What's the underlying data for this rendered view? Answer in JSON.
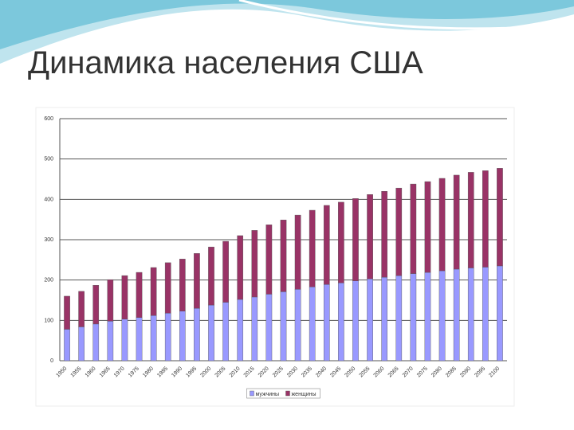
{
  "slide_title": "Динамика населения США",
  "chart_data": {
    "type": "stacked_bar",
    "categories": [
      "1950",
      "1955",
      "1960",
      "1965",
      "1970",
      "1975",
      "1980",
      "1985",
      "1990",
      "1995",
      "2000",
      "2005",
      "2010",
      "2015",
      "2020",
      "2025",
      "2030",
      "2035",
      "2040",
      "2045",
      "2050",
      "2055",
      "2060",
      "2065",
      "2070",
      "2075",
      "2080",
      "2085",
      "2090",
      "2095",
      "2100"
    ],
    "series": [
      {
        "name": "мужчины",
        "color": "#9999ff",
        "values": [
          78,
          84,
          91,
          98,
          103,
          107,
          112,
          118,
          123,
          130,
          138,
          145,
          152,
          158,
          165,
          171,
          177,
          183,
          189,
          193,
          198,
          203,
          207,
          211,
          216,
          219,
          223,
          227,
          230,
          232,
          235
        ]
      },
      {
        "name": "женщины",
        "color": "#993366",
        "values": [
          82,
          88,
          96,
          103,
          108,
          112,
          119,
          125,
          129,
          136,
          144,
          151,
          158,
          165,
          172,
          178,
          184,
          190,
          196,
          200,
          204,
          209,
          213,
          217,
          222,
          225,
          229,
          233,
          237,
          239,
          242
        ]
      }
    ],
    "ylim": [
      0,
      600
    ],
    "yticks": [
      0,
      100,
      200,
      300,
      400,
      500,
      600
    ],
    "grid": true,
    "legend": "bottom"
  }
}
